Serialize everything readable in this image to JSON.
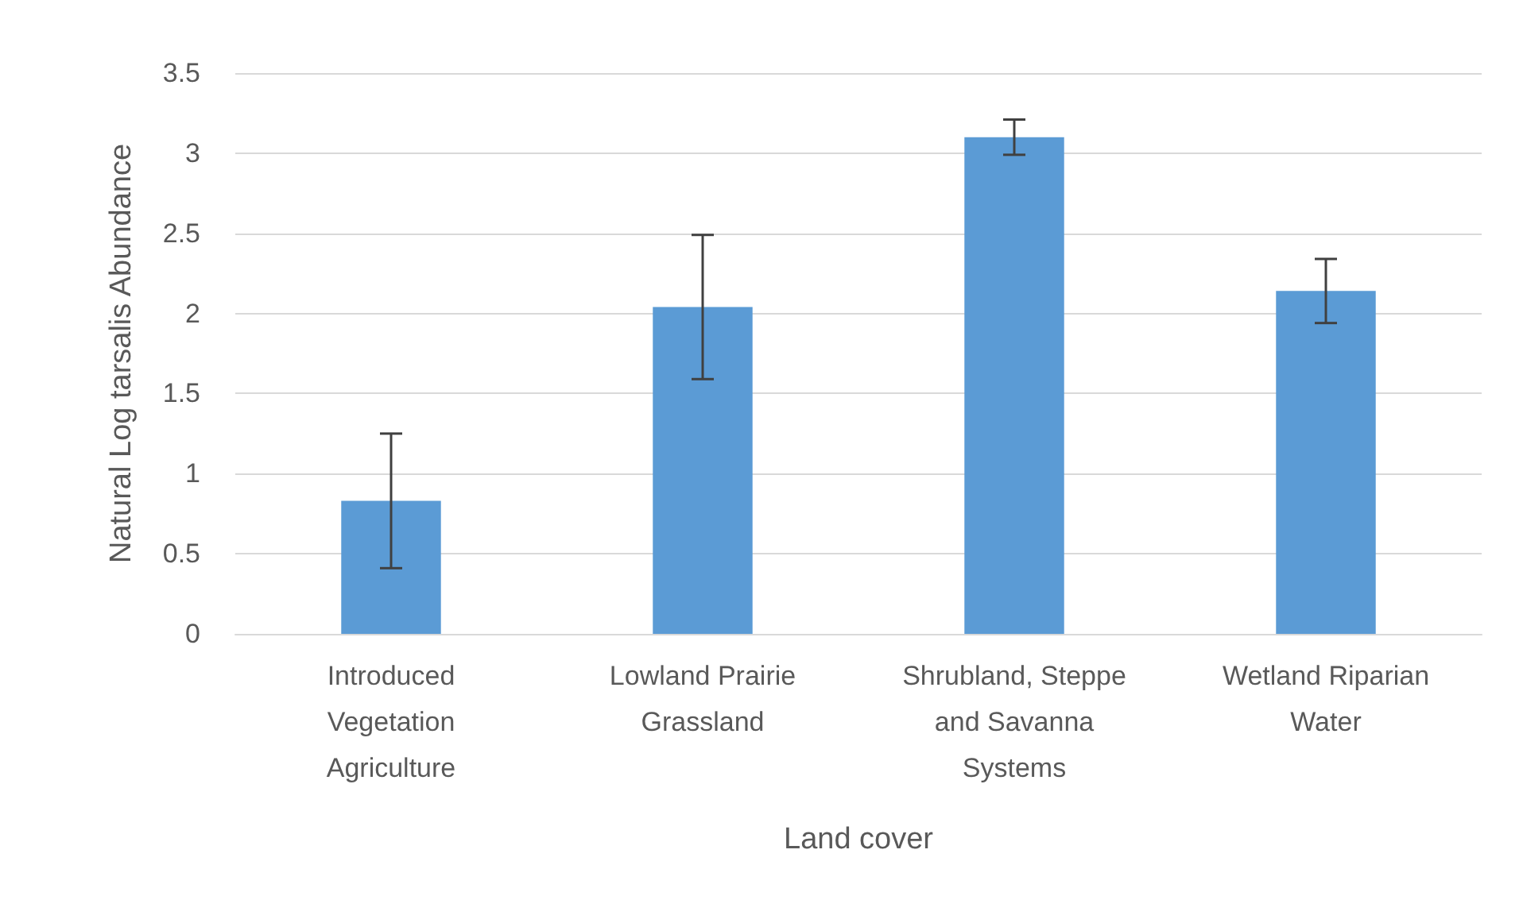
{
  "chart_data": {
    "type": "bar",
    "xlabel": "Land cover",
    "ylabel": "Natural Log tarsalis Abundance",
    "categories": [
      "Introduced\nVegetation\nAgriculture",
      "Lowland Prairie\nGrassland",
      "Shrubland, Steppe\nand Savanna\nSystems",
      "Wetland Riparian\nWater"
    ],
    "values": [
      0.83,
      2.04,
      3.1,
      2.14
    ],
    "errors": [
      0.42,
      0.45,
      0.11,
      0.2
    ],
    "color": "#5b9bd5",
    "ylim": [
      0,
      3.5
    ],
    "yticks": [
      0,
      0.5,
      1,
      1.5,
      2,
      2.5,
      3,
      3.5
    ],
    "grid": "y"
  }
}
